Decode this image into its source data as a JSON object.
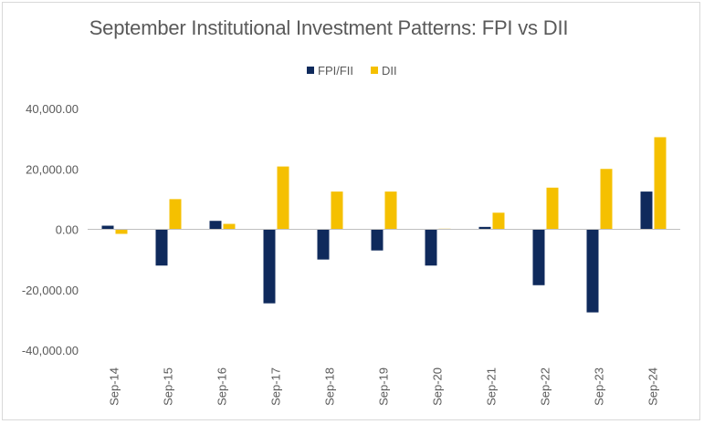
{
  "chart_data": {
    "type": "bar",
    "title": "September Institutional Investment Patterns: FPI vs DII",
    "categories": [
      "Sep-14",
      "Sep-15",
      "Sep-16",
      "Sep-17",
      "Sep-18",
      "Sep-19",
      "Sep-20",
      "Sep-21",
      "Sep-22",
      "Sep-23",
      "Sep-24"
    ],
    "series": [
      {
        "name": "FPI/FII",
        "color": "#0f2a5c",
        "values": [
          1200,
          -12000,
          2800,
          -24500,
          -10000,
          -7000,
          -12000,
          800,
          -18500,
          -27500,
          12500
        ]
      },
      {
        "name": "DII",
        "color": "#f5c000",
        "values": [
          -1500,
          10000,
          1800,
          20800,
          12500,
          12500,
          200,
          5500,
          13800,
          20000,
          30500
        ]
      }
    ],
    "y_ticks": [
      "40,000.00",
      "20,000.00",
      "0.00",
      "-20,000.00",
      "-40,000.00"
    ],
    "y_tick_values": [
      40000,
      20000,
      0,
      -20000,
      -40000
    ],
    "ylim": [
      -40000,
      40000
    ],
    "grid": false,
    "legend_position": "top-center"
  }
}
